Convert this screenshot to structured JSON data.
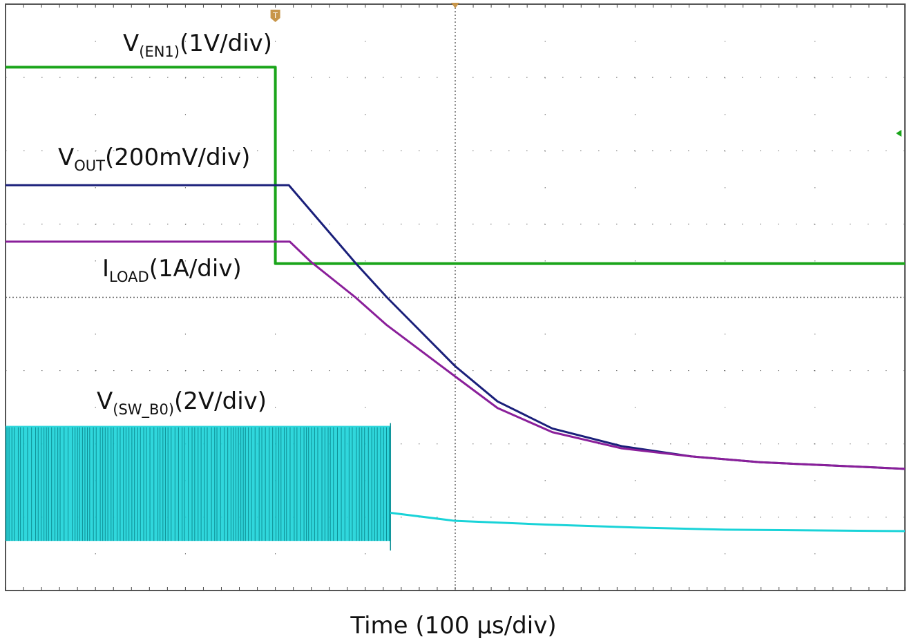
{
  "chart_data": {
    "type": "line",
    "xlabel": "Time (100 µs/div)",
    "x_unit": "µs",
    "xlim": [
      0,
      1000
    ],
    "ylim_divisions": [
      -4,
      4
    ],
    "grid": true,
    "trigger_marker": "T",
    "trigger_time": 300,
    "colors": {
      "en1": "#1aa51a",
      "vout": "#1a1f7a",
      "iload": "#8a1f9a",
      "sw": "#19d3d8",
      "grid": "#666666",
      "trigger": "#c8964a"
    },
    "series": [
      {
        "key": "en1",
        "label_main": "V",
        "label_sub": "(EN1)",
        "label_scale": "(1V/div)",
        "x": [
          0,
          300,
          300,
          1000
        ],
        "y": [
          3.14,
          3.14,
          0.46,
          0.46
        ]
      },
      {
        "key": "vout",
        "label_main": "V",
        "label_sub": "OUT",
        "label_scale": "(200mV/div)",
        "x": [
          0,
          315,
          389,
          424,
          500,
          547,
          608,
          685,
          762,
          839,
          1000
        ],
        "y": [
          1.53,
          1.53,
          0.47,
          0,
          -0.94,
          -1.42,
          -1.79,
          -2.03,
          -2.17,
          -2.25,
          -2.34
        ]
      },
      {
        "key": "iload",
        "label_main": "I",
        "label_sub": "LOAD",
        "label_scale": "(1A/div)",
        "x": [
          0,
          316,
          339,
          389,
          424,
          500,
          547,
          608,
          685,
          762,
          839,
          1000
        ],
        "y": [
          0.76,
          0.76,
          0.49,
          0,
          -0.38,
          -1.08,
          -1.51,
          -1.84,
          -2.06,
          -2.17,
          -2.25,
          -2.34
        ]
      },
      {
        "key": "sw",
        "label_main": "V",
        "label_sub": "(SW_B0)",
        "label_scale": "(2V/div)",
        "switching_until": 428,
        "switching_high": -1.81,
        "switching_low": -3.21,
        "x": [
          428,
          500,
          600,
          700,
          800,
          1000
        ],
        "y": [
          -2.94,
          -3.05,
          -3.1,
          -3.14,
          -3.17,
          -3.19
        ]
      }
    ]
  }
}
